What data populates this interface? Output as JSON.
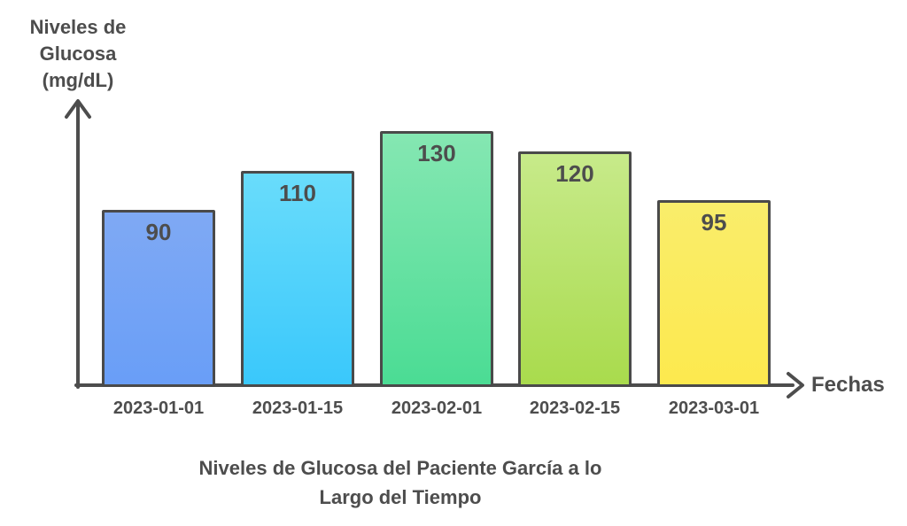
{
  "chart_data": {
    "type": "bar",
    "title": "Niveles de Glucosa del Paciente García a lo Largo del Tiempo",
    "title_lines": [
      "Niveles de Glucosa del Paciente García a lo",
      "Largo del Tiempo"
    ],
    "ylabel": "Niveles de Glucosa (mg/dL)",
    "ylabel_lines": [
      "Niveles de",
      "Glucosa",
      "(mg/dL)"
    ],
    "xlabel": "Fechas",
    "categories": [
      "2023-01-01",
      "2023-01-15",
      "2023-02-01",
      "2023-02-15",
      "2023-03-01"
    ],
    "values": [
      90,
      110,
      130,
      120,
      95
    ],
    "data_labels": [
      90,
      110,
      130,
      120,
      95
    ],
    "bar_gradients": [
      {
        "top": "#7FA9F4",
        "bottom": "#699EF7"
      },
      {
        "top": "#69DCFB",
        "bottom": "#3AC8FB"
      },
      {
        "top": "#85E7B2",
        "bottom": "#4BDC94"
      },
      {
        "top": "#C7EA8A",
        "bottom": "#A9DB4D"
      },
      {
        "top": "#F9ED6B",
        "bottom": "#FDE94E"
      }
    ],
    "axis_color": "#4D4D4D",
    "text_color": "#4D4D4D",
    "bar_border_color": "#4A4A4A",
    "background": "#FFFFFF",
    "ylim": [
      0,
      145
    ],
    "grid": false,
    "legend": false,
    "y_ticks": [],
    "legend_position": "none"
  }
}
